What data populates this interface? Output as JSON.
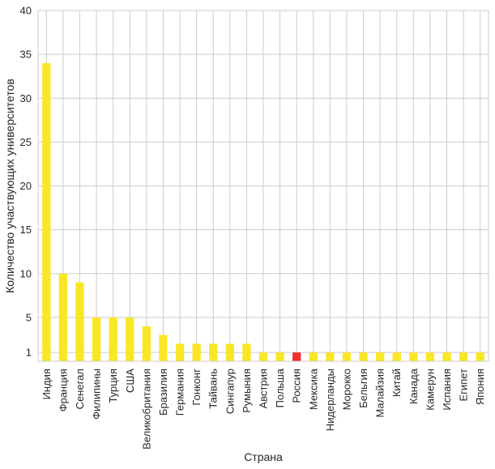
{
  "chart_data": {
    "type": "bar",
    "xlabel": "Страна",
    "ylabel": "Количество участвующих университетов",
    "ylim": [
      0,
      40
    ],
    "yticks": [
      1,
      5,
      10,
      15,
      20,
      25,
      30,
      35,
      40
    ],
    "grid": true,
    "categories": [
      "Индия",
      "Франция",
      "Сенегал",
      "Филипины",
      "Турция",
      "США",
      "Великобритания",
      "Бразилия",
      "Германия",
      "Гонконг",
      "Тайвань",
      "Сингапур",
      "Румыния",
      "Австрия",
      "Польша",
      "Россия",
      "Мексика",
      "Нидерланды",
      "Морокко",
      "Бельгия",
      "Малайзия",
      "Китай",
      "Канада",
      "Камерун",
      "Испания",
      "Египет",
      "Япония"
    ],
    "values": [
      34,
      10,
      9,
      5,
      5,
      5,
      4,
      3,
      2,
      2,
      2,
      2,
      2,
      1,
      1,
      1,
      1,
      1,
      1,
      1,
      1,
      1,
      1,
      1,
      1,
      1,
      1
    ],
    "highlight_category": "Россия",
    "colors": {
      "bar": "#f9e727",
      "highlight": "#f23030",
      "grid": "#cccccc",
      "frame": "#cccccc"
    }
  }
}
